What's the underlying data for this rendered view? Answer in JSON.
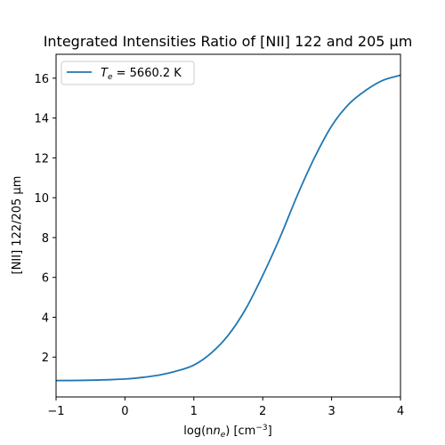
{
  "chart_data": {
    "type": "line",
    "title": "Integrated Intensities Ratio of [NII] 122 and 205 μm",
    "xlabel": "log(n",
    "xlabel_sub": "e",
    "xlabel_unit": ") [cm",
    "xlabel_sup": "−3",
    "xlabel_end": "]",
    "ylabel": "[NII] 122/205 μm",
    "xlim": [
      -1,
      4
    ],
    "ylim": [
      0.0,
      17.2
    ],
    "xticks": [
      -1,
      0,
      1,
      2,
      3,
      4
    ],
    "yticks": [
      2,
      4,
      6,
      8,
      10,
      12,
      14,
      16
    ],
    "grid": false,
    "legend_position": "top-left",
    "series": [
      {
        "name_main": "T",
        "name_sub": "e",
        "name_rest": " = 5660.2 K",
        "color": "#1f77b4",
        "x": [
          -1.0,
          -0.5,
          0.0,
          0.25,
          0.5,
          0.75,
          1.0,
          1.25,
          1.5,
          1.75,
          2.0,
          2.25,
          2.5,
          2.75,
          3.0,
          3.25,
          3.5,
          3.75,
          4.0
        ],
        "y": [
          0.82,
          0.84,
          0.9,
          0.98,
          1.1,
          1.3,
          1.6,
          2.2,
          3.1,
          4.4,
          6.1,
          8.0,
          10.1,
          12.0,
          13.6,
          14.7,
          15.4,
          15.9,
          16.15
        ]
      }
    ]
  }
}
